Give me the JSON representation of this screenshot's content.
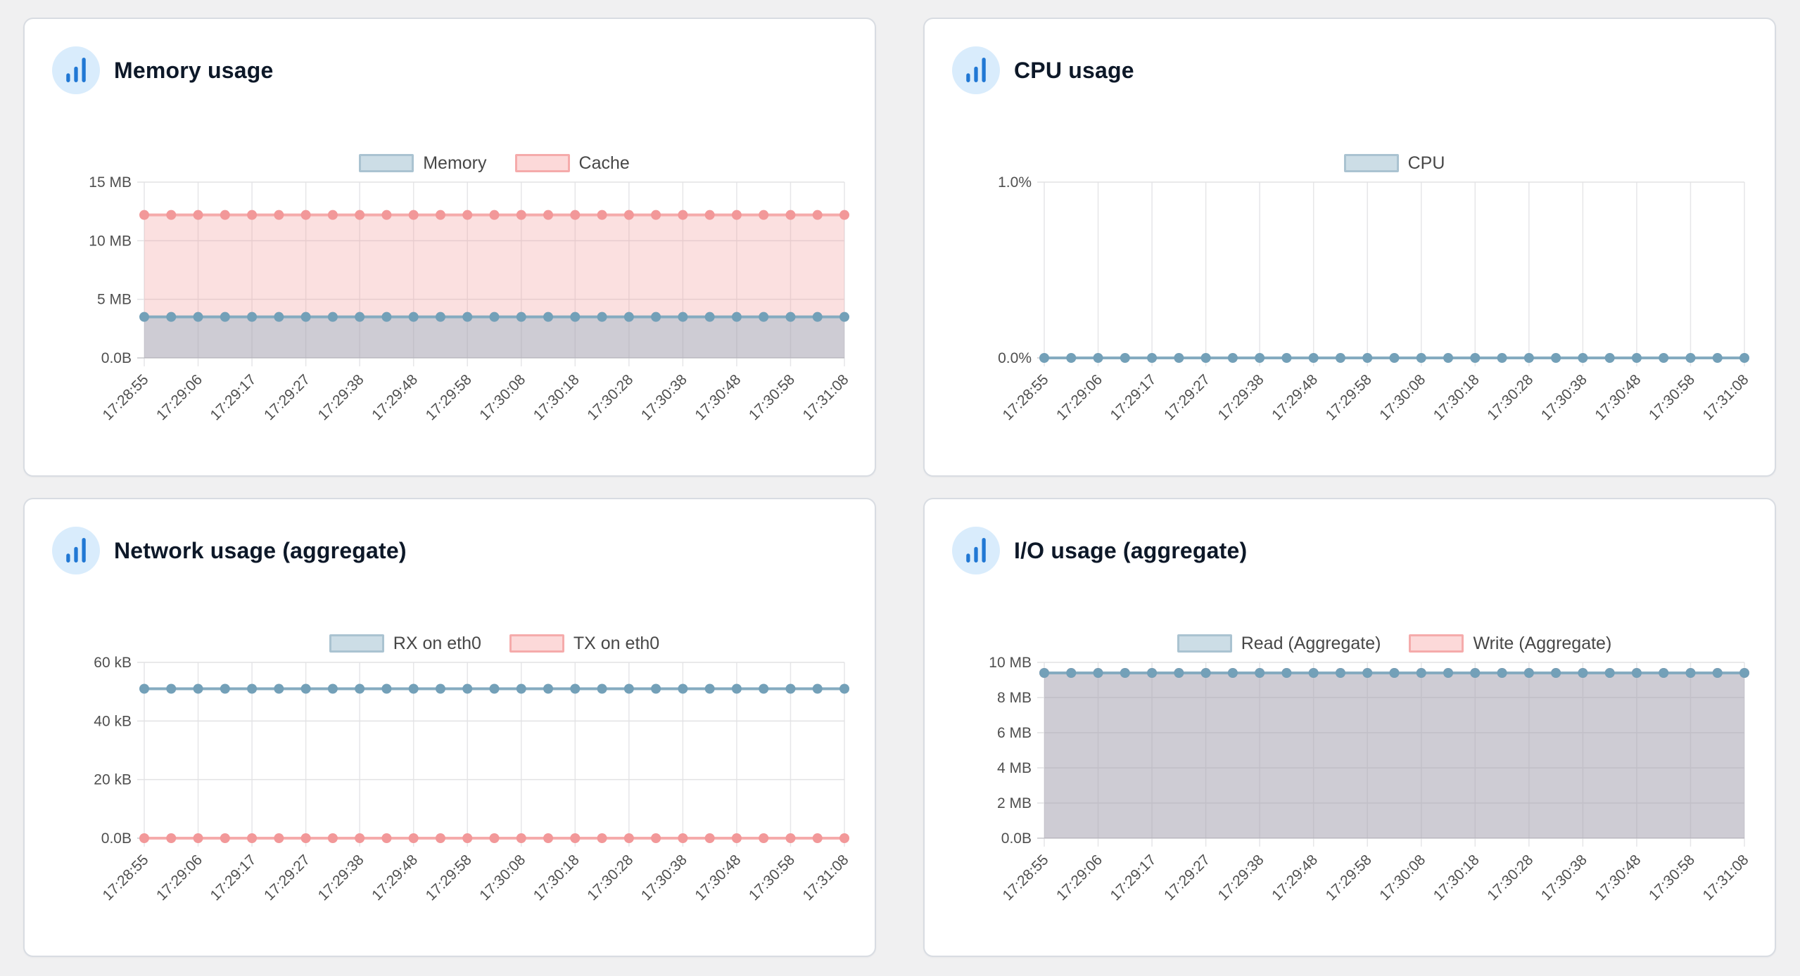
{
  "colors": {
    "page_bg": "#f0f0f1",
    "panel_bg": "#ffffff",
    "panel_border": "#d8dce2",
    "title_text": "#0d1828",
    "icon_circle_bg": "#d9ecfc",
    "icon_bars": "#2178d4",
    "tick_text": "#4f4f4f",
    "legend_text": "#474747",
    "grid_line_h": "#e2e2e4",
    "grid_line_v": "#e6e6e8",
    "axis_zero_line": "#c7c7cb",
    "blue_line": "#85abc0",
    "blue_dot": "#73a0b8",
    "blue_fill": "rgba(124,166,188,0.35)",
    "blue_swatch_fill": "#ccdde6",
    "blue_swatch_border": "#aac3d1",
    "pink_line": "#f5abab",
    "pink_dot": "#f29899",
    "pink_fill": "rgba(242,160,160,0.33)",
    "pink_swatch_fill": "#fcd9d9",
    "pink_swatch_border": "#f5abab"
  },
  "chart_data": [
    {
      "type": "area",
      "title": "Memory usage",
      "grid": true,
      "legend_position": "top-center",
      "ylim": [
        0,
        15
      ],
      "y_ticks": [
        {
          "value": 15,
          "label": "15 MB"
        },
        {
          "value": 10,
          "label": "10 MB"
        },
        {
          "value": 5,
          "label": "5 MB"
        },
        {
          "value": 0,
          "label": "0.0B"
        }
      ],
      "x_tick_labels": [
        "17:28:55",
        "17:29:06",
        "17:29:17",
        "17:29:27",
        "17:29:38",
        "17:29:48",
        "17:29:58",
        "17:30:08",
        "17:30:18",
        "17:30:28",
        "17:30:38",
        "17:30:48",
        "17:30:58",
        "17:31:08"
      ],
      "points_per_label": 2,
      "series": [
        {
          "name": "Memory",
          "color": "blue",
          "unit": "MB",
          "value_constant": 3.5,
          "point_count": 27,
          "area_fill": true
        },
        {
          "name": "Cache",
          "color": "pink",
          "unit": "MB",
          "value_constant": 12.2,
          "point_count": 27,
          "area_fill": true
        }
      ]
    },
    {
      "type": "line",
      "title": "CPU usage",
      "grid": true,
      "legend_position": "top-center",
      "ylim": [
        0,
        1
      ],
      "y_ticks": [
        {
          "value": 1,
          "label": "1.0%"
        },
        {
          "value": 0,
          "label": "0.0%"
        }
      ],
      "x_tick_labels": [
        "17:28:55",
        "17:29:06",
        "17:29:17",
        "17:29:27",
        "17:29:38",
        "17:29:48",
        "17:29:58",
        "17:30:08",
        "17:30:18",
        "17:30:28",
        "17:30:38",
        "17:30:48",
        "17:30:58",
        "17:31:08"
      ],
      "points_per_label": 2,
      "series": [
        {
          "name": "CPU",
          "color": "blue",
          "unit": "%",
          "value_constant": 0,
          "point_count": 27,
          "area_fill": false
        }
      ]
    },
    {
      "type": "line",
      "title": "Network usage (aggregate)",
      "grid": true,
      "legend_position": "top-center",
      "ylim": [
        0,
        60
      ],
      "y_ticks": [
        {
          "value": 60,
          "label": "60 kB"
        },
        {
          "value": 40,
          "label": "40 kB"
        },
        {
          "value": 20,
          "label": "20 kB"
        },
        {
          "value": 0,
          "label": "0.0B"
        }
      ],
      "x_tick_labels": [
        "17:28:55",
        "17:29:06",
        "17:29:17",
        "17:29:27",
        "17:29:38",
        "17:29:48",
        "17:29:58",
        "17:30:08",
        "17:30:18",
        "17:30:28",
        "17:30:38",
        "17:30:48",
        "17:30:58",
        "17:31:08"
      ],
      "points_per_label": 2,
      "series": [
        {
          "name": "RX on eth0",
          "color": "blue",
          "unit": "kB",
          "value_constant": 51,
          "point_count": 27,
          "area_fill": false
        },
        {
          "name": "TX on eth0",
          "color": "pink",
          "unit": "kB",
          "value_constant": 0,
          "point_count": 27,
          "area_fill": false
        }
      ]
    },
    {
      "type": "area",
      "title": "I/O usage (aggregate)",
      "grid": true,
      "legend_position": "top-center",
      "ylim": [
        0,
        10
      ],
      "y_ticks": [
        {
          "value": 10,
          "label": "10 MB"
        },
        {
          "value": 8,
          "label": "8 MB"
        },
        {
          "value": 6,
          "label": "6 MB"
        },
        {
          "value": 4,
          "label": "4 MB"
        },
        {
          "value": 2,
          "label": "2 MB"
        },
        {
          "value": 0,
          "label": "0.0B"
        }
      ],
      "x_tick_labels": [
        "17:28:55",
        "17:29:06",
        "17:29:17",
        "17:29:27",
        "17:29:38",
        "17:29:48",
        "17:29:58",
        "17:30:08",
        "17:30:18",
        "17:30:28",
        "17:30:38",
        "17:30:48",
        "17:30:58",
        "17:31:08"
      ],
      "points_per_label": 2,
      "series": [
        {
          "name": "Read (Aggregate)",
          "color": "blue",
          "unit": "MB",
          "value_constant": 9.4,
          "point_count": 27,
          "area_fill": true
        },
        {
          "name": "Write (Aggregate)",
          "color": "pink",
          "unit": "MB",
          "value_constant": 9.4,
          "point_count": 27,
          "area_fill": true
        }
      ]
    }
  ]
}
